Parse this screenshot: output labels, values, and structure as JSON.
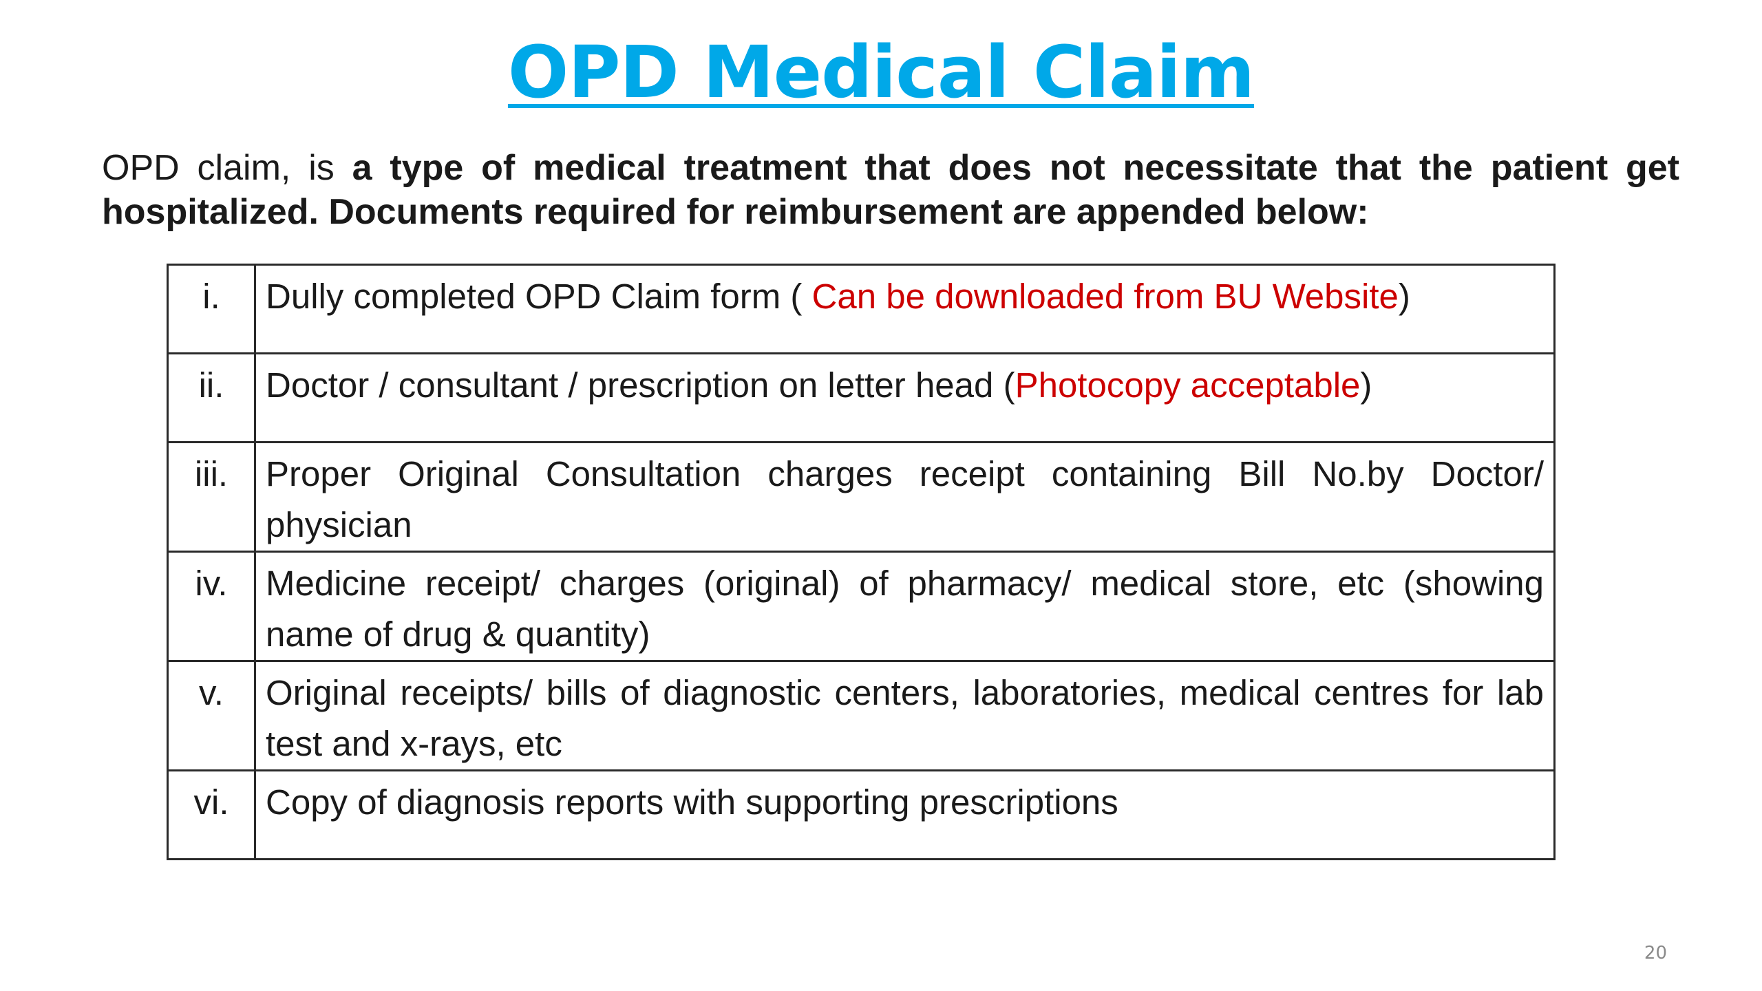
{
  "title": "OPD Medical Claim",
  "intro": {
    "lead": "OPD claim, is ",
    "bold": "a type of medical treatment that does not necessitate that the patient get hospitalized. Documents required for reimbursement are appended below:"
  },
  "documents": [
    {
      "num": "i.",
      "text": "Dully completed OPD Claim form ( ",
      "note": "Can be downloaded from BU Website",
      "suffix": ")"
    },
    {
      "num": "ii.",
      "text": "Doctor / consultant / prescription on letter head (",
      "note": "Photocopy acceptable",
      "suffix": ")"
    },
    {
      "num": "iii.",
      "text": "Proper Original Consultation charges receipt containing Bill No.by Doctor/ physician",
      "note": "",
      "suffix": ""
    },
    {
      "num": "iv.",
      "text": "Medicine receipt/ charges (original) of pharmacy/ medical store, etc (showing name of drug & quantity)",
      "note": "",
      "suffix": ""
    },
    {
      "num": "v.",
      "text": "Original receipts/ bills of diagnostic centers, laboratories, medical centres  for lab test and x-rays, etc",
      "note": "",
      "suffix": ""
    },
    {
      "num": "vi.",
      "text": "Copy of  diagnosis reports  with supporting prescriptions",
      "note": "",
      "suffix": ""
    }
  ],
  "page_number": "20",
  "colors": {
    "title": "#00a8e8",
    "note": "#cc0000",
    "text": "#1a1a1a"
  }
}
